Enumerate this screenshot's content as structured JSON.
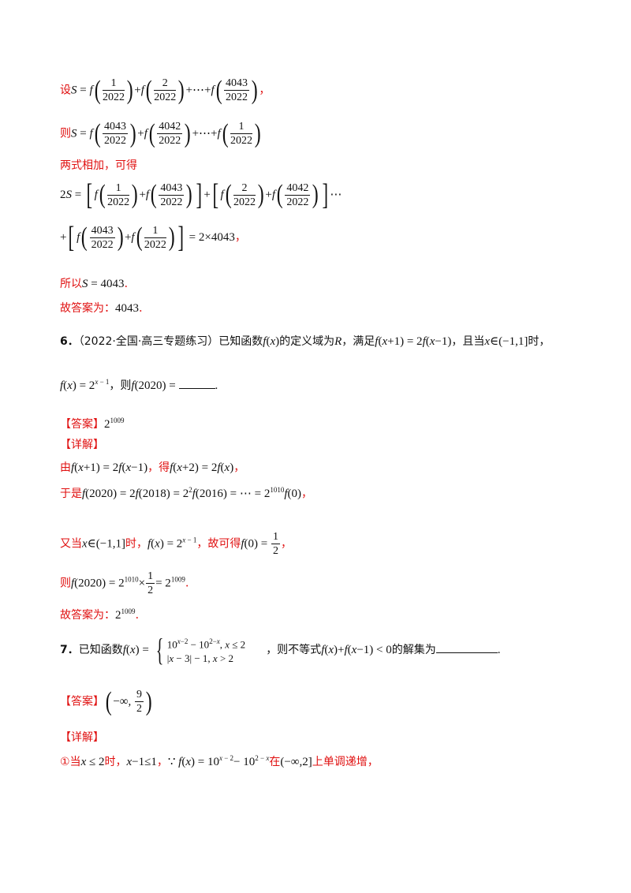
{
  "problem5_tail": {
    "l1_prefix": "设",
    "l1_suffix": "，",
    "l2_prefix": "则",
    "l3": "两式相加，可得",
    "l6_prefix": "所以",
    "l7_prefix": "故答案为：",
    "l7_value": "4043",
    "l7_end": "."
  },
  "problem6": {
    "number": "6．",
    "source": "（2022·全国·高三专题练习）",
    "t1": "已知函数",
    "t2": "的定义域为",
    "t3": "，满足",
    "t4": "，且当",
    "t5": "时，",
    "t6": "，则",
    "answer_label": "【答案】",
    "detail_label": "【详解】",
    "d1_prefix": "由",
    "d1_mid": "，得",
    "d1_end": "，",
    "d2_prefix": "于是",
    "d2_end": "，",
    "d3_prefix": "又当",
    "d3_mid": "时，",
    "d3_mid2": "，故可得",
    "d3_end": "，",
    "d4_prefix": "则",
    "d4_end": ".",
    "d5_prefix": "故答案为：",
    "d5_end": "."
  },
  "problem7": {
    "number": "7．",
    "t1": "已知函数",
    "t2": "，则不等式",
    "t3": "的解集为",
    "answer_label": "【答案】",
    "detail_label": "【详解】",
    "d1_prefix": "①当",
    "d1_mid": "时，",
    "d1_mid2": "，",
    "d1_mid3": "在",
    "d1_end": "上单调递增，"
  }
}
